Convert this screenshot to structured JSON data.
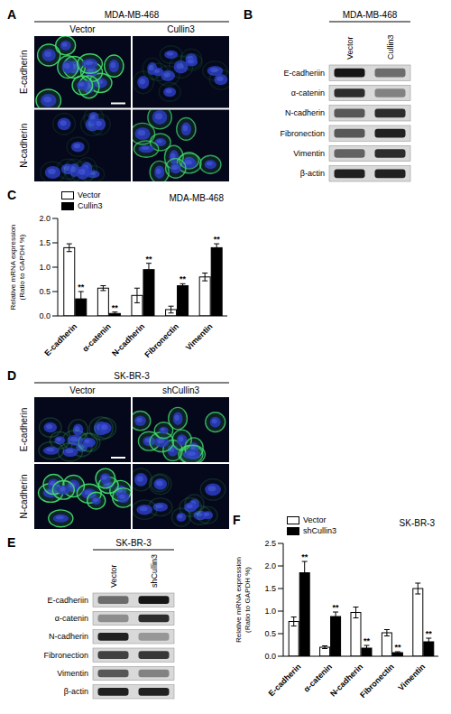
{
  "images": [
    {
      "panel": "A",
      "type": "microscopy",
      "cell_line": "MDA-MB-468",
      "columns": [
        "Vector",
        "Cullin3"
      ],
      "rows": [
        "E-cadherin",
        "N-cadherin"
      ],
      "signal": [
        [
          0.9,
          0.1
        ],
        [
          0.1,
          0.7
        ]
      ]
    },
    {
      "panel": "D",
      "type": "microscopy",
      "cell_line": "SK-BR-3",
      "columns": [
        "Vector",
        "shCullin3"
      ],
      "rows": [
        "E-cadherin",
        "N-cadherin"
      ],
      "signal": [
        [
          0.2,
          0.75
        ],
        [
          0.9,
          0.15
        ]
      ]
    }
  ],
  "blots": [
    {
      "panel": "B",
      "type": "blot",
      "cell_line": "MDA-MB-468",
      "columns": [
        "Vector",
        "Cullin3"
      ],
      "rows": [
        "E-cadheriin",
        "α-catenin",
        "N-cadherin",
        "Fibronection",
        "Vimentin",
        "β-actin"
      ],
      "intensity": [
        [
          0.9,
          0.5
        ],
        [
          0.8,
          0.4
        ],
        [
          0.6,
          0.8
        ],
        [
          0.6,
          0.85
        ],
        [
          0.55,
          0.8
        ],
        [
          0.85,
          0.85
        ]
      ]
    },
    {
      "panel": "E",
      "type": "blot",
      "cell_line": "SK-BR-3",
      "columns": [
        "Vector",
        "shCullin3"
      ],
      "rows": [
        "E-cadheriin",
        "α-catenin",
        "N-cadherin",
        "Fibronection",
        "Vimentin",
        "β-actin"
      ],
      "intensity": [
        [
          0.5,
          0.9
        ],
        [
          0.35,
          0.8
        ],
        [
          0.85,
          0.3
        ],
        [
          0.7,
          0.75
        ],
        [
          0.6,
          0.4
        ],
        [
          0.85,
          0.85
        ]
      ]
    }
  ],
  "chart_data": [
    {
      "panel": "C",
      "type": "bar",
      "title": "MDA-MB-468",
      "y_label": [
        "Relative mRNA expression",
        "(Ratio to GAPDH %)"
      ],
      "categories": [
        "E-cadherin",
        "α-catenin",
        "N-cadherin",
        "Fibronectin",
        "Vimentin"
      ],
      "series": [
        {
          "name": "Vector",
          "color": "#ffffff",
          "values": [
            1.4,
            0.57,
            0.42,
            0.13,
            0.8
          ],
          "errors": [
            0.08,
            0.05,
            0.15,
            0.07,
            0.08
          ]
        },
        {
          "name": "Cullin3",
          "color": "#000000",
          "values": [
            0.35,
            0.05,
            0.95,
            0.62,
            1.4
          ],
          "errors": [
            0.15,
            0.03,
            0.13,
            0.04,
            0.08
          ],
          "significance": [
            "**",
            "**",
            "**",
            "**",
            "**"
          ]
        }
      ],
      "ylim": [
        0,
        2
      ],
      "yticks": [
        {
          "value": 0,
          "label": "0.0"
        },
        0.5,
        {
          "value": 1,
          "label": "1.0"
        },
        1.5,
        {
          "value": 2,
          "label": "2.0"
        }
      ],
      "legend": "upper left"
    },
    {
      "panel": "F",
      "type": "bar",
      "title": "SK-BR-3",
      "y_label": [
        "Relative mRNA expression",
        "(Ratio to GAPDH %)"
      ],
      "categories": [
        "E-cadherin",
        "α-catenin",
        "N-cadherin",
        "Fibronectin",
        "Vimentin"
      ],
      "series": [
        {
          "name": "Vector",
          "color": "#ffffff",
          "values": [
            0.77,
            0.2,
            0.97,
            0.52,
            1.5
          ],
          "errors": [
            0.1,
            0.03,
            0.12,
            0.07,
            0.12
          ]
        },
        {
          "name": "shCullin3",
          "color": "#000000",
          "values": [
            1.85,
            0.88,
            0.18,
            0.08,
            0.32
          ],
          "errors": [
            0.25,
            0.1,
            0.06,
            0.02,
            0.08
          ],
          "significance": [
            "**",
            "**",
            "**",
            "**",
            "**"
          ]
        }
      ],
      "ylim": [
        0,
        2.5
      ],
      "yticks": [
        {
          "value": 0,
          "label": "0.0"
        },
        0.5,
        {
          "value": 1,
          "label": "1.0"
        },
        1.5,
        {
          "value": 2,
          "label": "2.0"
        },
        2.5
      ],
      "legend": "upper left"
    }
  ]
}
